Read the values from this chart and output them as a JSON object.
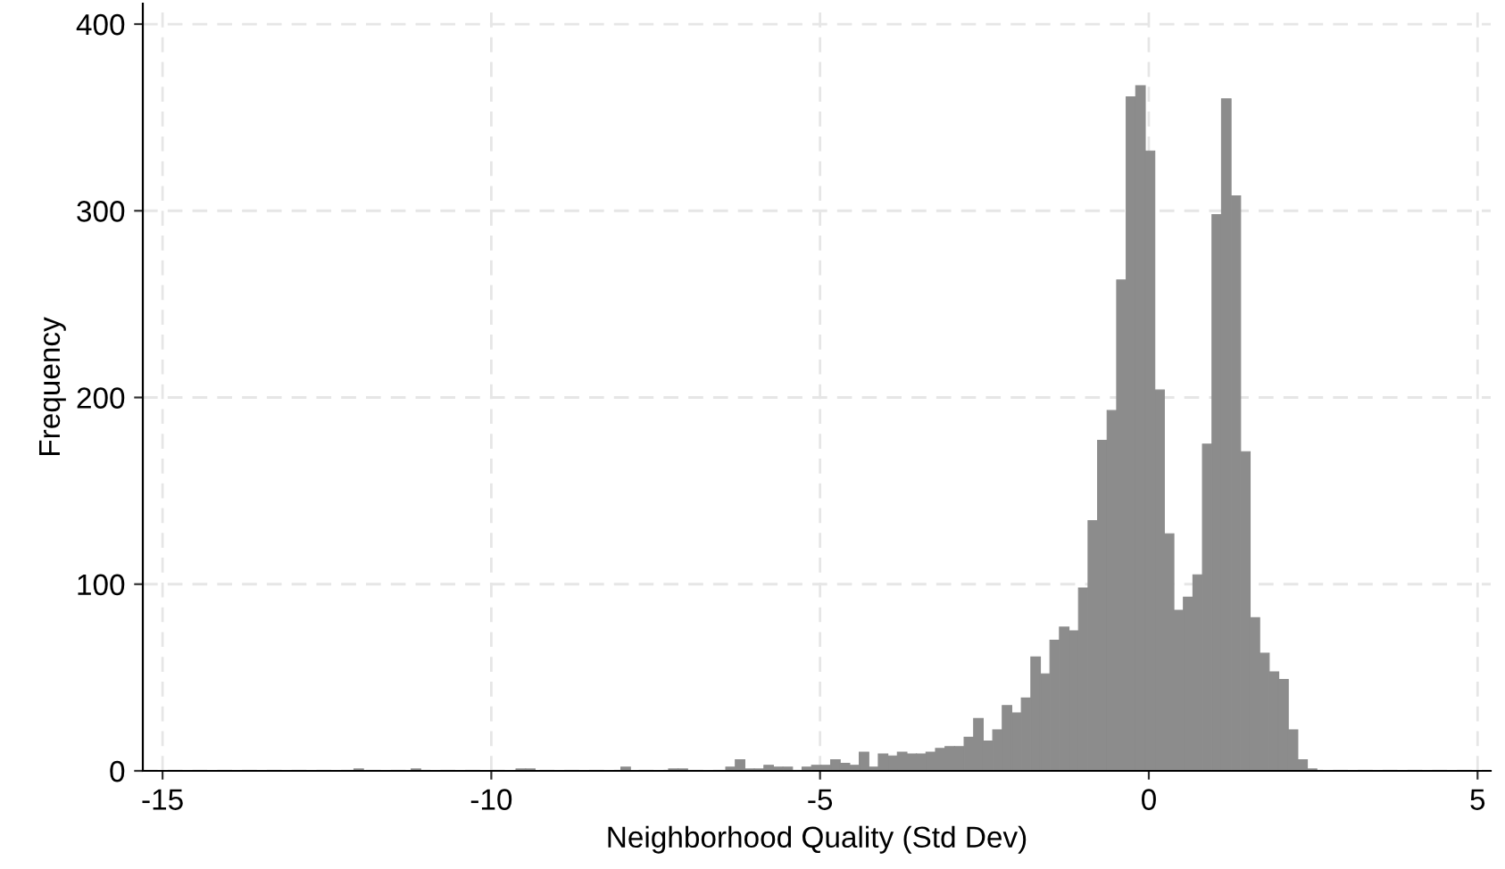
{
  "chart_data": {
    "type": "histogram",
    "xlabel": "Neighborhood Quality (Std Dev)",
    "ylabel": "Frequency",
    "bins": [
      -12.089,
      -11.944,
      -11.799,
      -11.654,
      -11.509,
      -11.364,
      -11.219,
      -11.074,
      -10.929,
      -10.784,
      -10.639,
      -10.494,
      -10.349,
      -10.204,
      -10.059,
      -9.914,
      -9.769,
      -9.624,
      -9.479,
      -9.334,
      -9.189,
      -9.044,
      -8.899,
      -8.754,
      -8.609,
      -8.464,
      -8.319,
      -8.174,
      -8.029,
      -7.884,
      -7.739,
      -7.594,
      -7.449,
      -7.304,
      -7.159,
      -7.014,
      -6.869,
      -6.724,
      -6.579,
      -6.434,
      -6.289,
      -6.144,
      -5.999,
      -5.854,
      -5.709,
      -5.564,
      -5.419,
      -5.274,
      -5.129,
      -4.984,
      -4.839,
      -4.694,
      -4.549,
      -4.404,
      -4.259,
      -4.114,
      -3.969,
      -3.824,
      -3.679,
      -3.534,
      -3.389,
      -3.244,
      -3.099,
      -2.954,
      -2.809,
      -2.664,
      -2.519,
      -2.374,
      -2.229,
      -2.084,
      -1.939,
      -1.794,
      -1.649,
      -1.504,
      -1.359,
      -1.214,
      -1.069,
      -0.924,
      -0.779,
      -0.634,
      -0.489,
      -0.344,
      -0.199,
      -0.054,
      0.091,
      0.236,
      0.381,
      0.526,
      0.671,
      0.816,
      0.961,
      1.106,
      1.251,
      1.396,
      1.541,
      1.686,
      1.831,
      1.976,
      2.121,
      2.266,
      2.411,
      2.556
    ],
    "values": [
      1,
      0,
      0,
      0,
      0,
      0,
      1,
      0,
      0,
      0,
      0,
      0,
      0,
      0,
      0,
      0,
      0,
      1,
      1,
      0,
      0,
      0,
      0,
      0,
      0,
      0,
      0,
      0,
      2,
      0,
      0,
      0,
      0,
      1,
      1,
      0,
      0,
      0,
      0,
      2,
      6,
      1,
      1,
      3,
      2,
      2,
      0,
      2,
      3,
      3,
      6,
      4,
      3,
      10,
      2,
      9,
      8,
      10,
      9,
      9,
      10,
      12,
      13,
      13,
      18,
      28,
      16,
      22,
      35,
      31,
      39,
      61,
      52,
      70,
      77,
      75,
      98,
      134,
      177,
      193,
      263,
      361,
      367,
      332,
      204,
      127,
      86,
      93,
      105,
      175,
      298,
      360,
      308,
      171,
      82,
      63,
      53,
      49,
      22,
      6,
      1
    ],
    "color": "#8c8c8c",
    "xlim": [
      -15.3,
      5.2
    ],
    "ylim": [
      0,
      411
    ],
    "xticks": [
      {
        "value": -15,
        "label": "-15"
      },
      {
        "value": -10,
        "label": "-10"
      },
      {
        "value": -5,
        "label": "-5"
      },
      0,
      5
    ],
    "yticks": [
      0,
      100,
      200,
      300,
      400
    ],
    "grid": true
  }
}
